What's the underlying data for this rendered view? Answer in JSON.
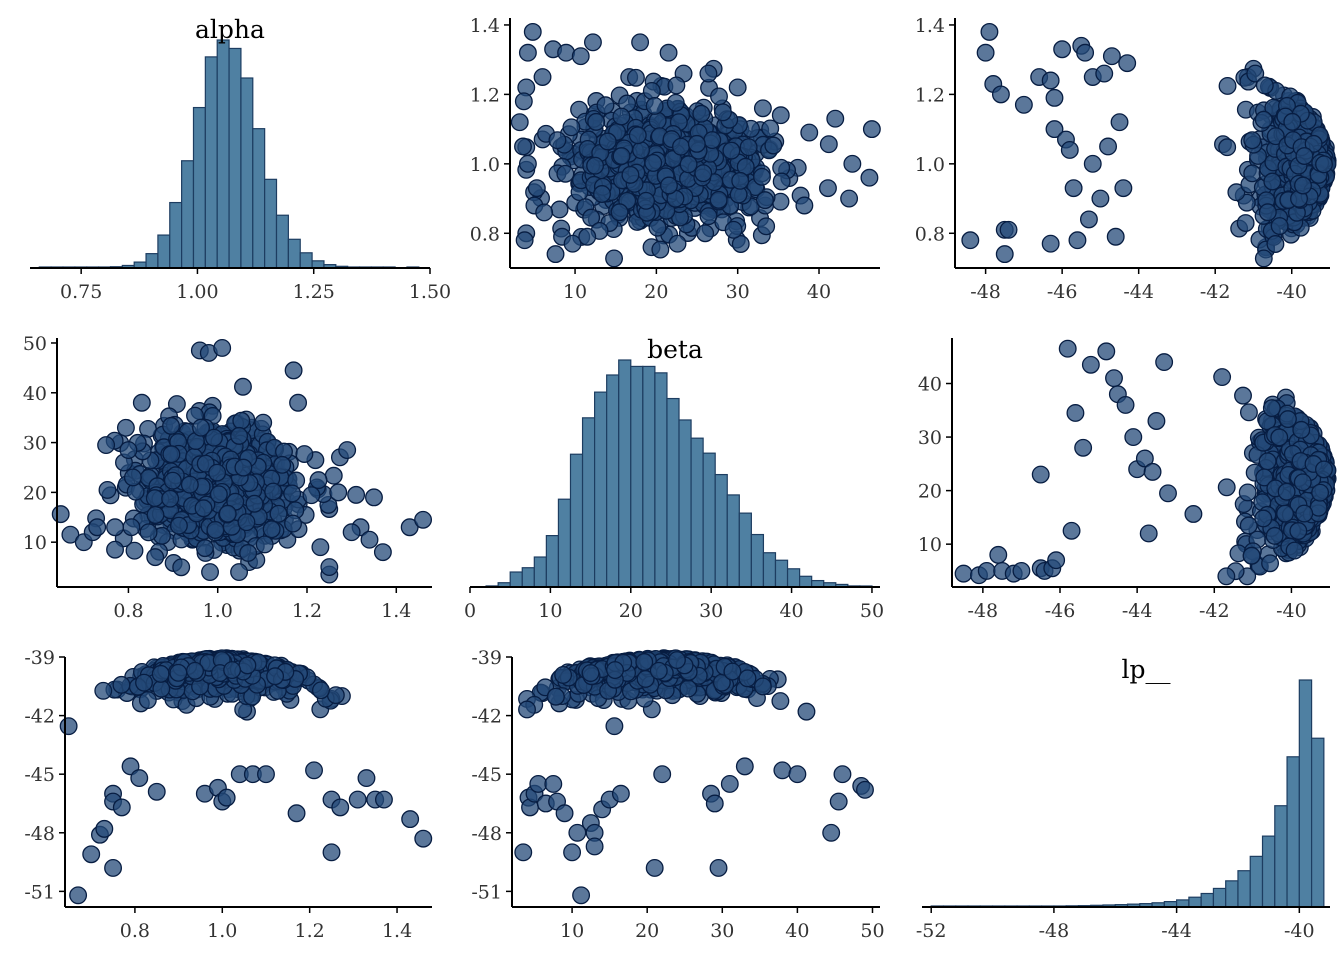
{
  "figure": {
    "background": "#ffffff",
    "colors": {
      "hist_fill": "#4f80a2",
      "hist_outline": "#1d3d61",
      "point_fill": "#244a78",
      "point_outline": "#071d42",
      "axis": "#000000",
      "tick_text": "#333333"
    }
  },
  "chart_data": [
    {
      "id": "alpha-hist",
      "type": "histogram",
      "title": "alpha",
      "xlim": [
        0.64,
        1.5
      ],
      "xticks": [
        0.75,
        1.0,
        1.25,
        1.5
      ],
      "xtick_labels": [
        "0.75",
        "1.00",
        "1.25",
        "1.50"
      ],
      "bin_start": 0.66,
      "bin_width": 0.0255,
      "counts": [
        1,
        1,
        1,
        1,
        1,
        2,
        3,
        6,
        14,
        34,
        78,
        155,
        254,
        380,
        500,
        540,
        520,
        450,
        330,
        210,
        125,
        68,
        36,
        17,
        8,
        4,
        2,
        1,
        1,
        1,
        0,
        1
      ]
    },
    {
      "id": "beta-vs-alpha",
      "type": "scatter",
      "x_param": "beta",
      "y_param": "alpha",
      "xlim": [
        2,
        47.5
      ],
      "ylim": [
        0.7,
        1.42
      ],
      "xticks": [
        10,
        20,
        30,
        40
      ],
      "yticks": [
        0.8,
        1.0,
        1.2,
        1.4
      ],
      "xtick_labels": [
        "10",
        "20",
        "30",
        "40"
      ],
      "ytick_labels": [
        "0.8",
        "1.0",
        "1.2",
        "1.4"
      ],
      "points": [
        [
          4.8,
          1.38
        ],
        [
          12.2,
          1.35
        ],
        [
          7.3,
          1.33
        ],
        [
          8.9,
          1.32
        ],
        [
          4.2,
          1.32
        ],
        [
          10.7,
          1.31
        ],
        [
          4.0,
          1.22
        ],
        [
          6.0,
          1.25
        ],
        [
          3.7,
          1.18
        ],
        [
          3.2,
          1.12
        ],
        [
          3.6,
          1.05
        ],
        [
          4.2,
          1.0
        ],
        [
          5.3,
          0.93
        ],
        [
          5.0,
          0.88
        ],
        [
          6.2,
          0.86
        ],
        [
          4.0,
          0.8
        ],
        [
          3.8,
          0.78
        ],
        [
          7.6,
          0.74
        ],
        [
          8.4,
          0.79
        ],
        [
          9.7,
          0.77
        ],
        [
          11.5,
          0.79
        ],
        [
          22.6,
          0.77
        ],
        [
          26.0,
          0.8
        ],
        [
          29.5,
          0.81
        ],
        [
          33.5,
          0.82
        ],
        [
          38.2,
          0.88
        ],
        [
          41.1,
          0.93
        ],
        [
          43.7,
          0.9
        ],
        [
          44.1,
          1.0
        ],
        [
          46.2,
          0.96
        ],
        [
          46.5,
          1.1
        ],
        [
          42.0,
          1.13
        ],
        [
          38.8,
          1.09
        ],
        [
          35.3,
          1.14
        ],
        [
          33.1,
          1.16
        ],
        [
          30.0,
          1.22
        ],
        [
          26.4,
          1.26
        ],
        [
          21.5,
          1.32
        ],
        [
          18.0,
          1.35
        ]
      ]
    },
    {
      "id": "lp-vs-alpha",
      "type": "scatter",
      "x_param": "lp__",
      "y_param": "alpha",
      "xlim": [
        -48.8,
        -39.0
      ],
      "ylim": [
        0.7,
        1.42
      ],
      "xticks": [
        -48,
        -46,
        -44,
        -42,
        -40
      ],
      "yticks": [
        0.8,
        1.0,
        1.2,
        1.4
      ],
      "xtick_labels": [
        "-48",
        "-46",
        "-44",
        "-42",
        "-40"
      ],
      "ytick_labels": [
        "0.8",
        "1.0",
        "1.2",
        "1.4"
      ],
      "points": [
        [
          -48.4,
          0.78
        ],
        [
          -48.0,
          1.32
        ],
        [
          -47.9,
          1.38
        ],
        [
          -47.8,
          1.23
        ],
        [
          -47.6,
          1.2
        ],
        [
          -47.5,
          0.81
        ],
        [
          -47.4,
          0.81
        ],
        [
          -47.5,
          0.74
        ],
        [
          -47.0,
          1.17
        ],
        [
          -46.6,
          1.25
        ],
        [
          -46.3,
          1.24
        ],
        [
          -46.2,
          1.19
        ],
        [
          -46.3,
          0.77
        ],
        [
          -46.2,
          1.1
        ],
        [
          -46.0,
          1.33
        ],
        [
          -45.9,
          1.07
        ],
        [
          -45.8,
          1.04
        ],
        [
          -45.7,
          0.93
        ],
        [
          -45.6,
          0.78
        ],
        [
          -45.5,
          1.34
        ],
        [
          -45.4,
          1.32
        ],
        [
          -45.3,
          0.84
        ],
        [
          -45.2,
          1.0
        ],
        [
          -45.2,
          1.25
        ],
        [
          -45.0,
          0.9
        ],
        [
          -44.9,
          1.26
        ],
        [
          -44.8,
          1.05
        ],
        [
          -44.7,
          1.31
        ],
        [
          -44.6,
          0.79
        ],
        [
          -44.5,
          1.12
        ],
        [
          -44.4,
          0.93
        ],
        [
          -44.3,
          1.29
        ]
      ]
    },
    {
      "id": "alpha-vs-beta",
      "type": "scatter",
      "x_param": "alpha",
      "y_param": "beta",
      "xlim": [
        0.64,
        1.48
      ],
      "ylim": [
        1,
        51
      ],
      "xticks": [
        0.8,
        1.0,
        1.2,
        1.4
      ],
      "yticks": [
        10,
        20,
        30,
        40,
        50
      ],
      "xtick_labels": [
        "0.8",
        "1.0",
        "1.2",
        "1.4"
      ],
      "ytick_labels": [
        "10",
        "20",
        "30",
        "40",
        "50"
      ],
      "points": [
        [
          0.67,
          11.5
        ],
        [
          0.7,
          10.0
        ],
        [
          0.72,
          12.0
        ],
        [
          0.73,
          13.0
        ],
        [
          0.75,
          29.5
        ],
        [
          0.77,
          13.0
        ],
        [
          0.77,
          8.5
        ],
        [
          0.79,
          26.0
        ],
        [
          0.8,
          28.5
        ],
        [
          0.81,
          23.0
        ],
        [
          0.83,
          38.0
        ],
        [
          0.86,
          7.0
        ],
        [
          0.96,
          48.5
        ],
        [
          0.98,
          48.0
        ],
        [
          1.01,
          49.0
        ],
        [
          1.17,
          44.5
        ],
        [
          1.18,
          38.0
        ],
        [
          1.23,
          9.0
        ],
        [
          1.25,
          3.5
        ],
        [
          1.25,
          5.0
        ],
        [
          1.27,
          20.0
        ],
        [
          1.29,
          28.5
        ],
        [
          1.31,
          19.5
        ],
        [
          1.32,
          13.0
        ],
        [
          1.35,
          19.0
        ],
        [
          1.37,
          8.0
        ],
        [
          1.43,
          13.0
        ],
        [
          1.46,
          14.5
        ],
        [
          1.34,
          10.5
        ],
        [
          1.3,
          12.0
        ]
      ]
    },
    {
      "id": "beta-hist",
      "type": "histogram",
      "title": "beta",
      "xlim": [
        0,
        51
      ],
      "xticks": [
        0,
        10,
        20,
        30,
        40,
        50
      ],
      "xtick_labels": [
        "0",
        "10",
        "20",
        "30",
        "40",
        "50"
      ],
      "bin_start": 2.0,
      "bin_width": 1.5,
      "counts": [
        5,
        20,
        70,
        90,
        140,
        240,
        410,
        620,
        790,
        910,
        990,
        1060,
        1030,
        1030,
        1000,
        880,
        780,
        695,
        625,
        525,
        430,
        345,
        245,
        160,
        125,
        85,
        50,
        30,
        20,
        12,
        5,
        3
      ]
    },
    {
      "id": "lp-vs-beta",
      "type": "scatter",
      "x_param": "lp__",
      "y_param": "beta",
      "xlim": [
        -48.8,
        -39.0
      ],
      "ylim": [
        2,
        48.5
      ],
      "xticks": [
        -48,
        -46,
        -44,
        -42,
        -40
      ],
      "yticks": [
        10,
        20,
        30,
        40
      ],
      "xtick_labels": [
        "-48",
        "-46",
        "-44",
        "-42",
        "-40"
      ],
      "ytick_labels": [
        "10",
        "20",
        "30",
        "40"
      ],
      "points": [
        [
          -48.5,
          4.5
        ],
        [
          -48.1,
          4.2
        ],
        [
          -47.9,
          5.0
        ],
        [
          -47.6,
          8.0
        ],
        [
          -47.5,
          5.0
        ],
        [
          -47.2,
          4.5
        ],
        [
          -47.0,
          5.0
        ],
        [
          -46.5,
          5.5
        ],
        [
          -46.4,
          5.0
        ],
        [
          -46.2,
          5.5
        ],
        [
          -46.5,
          23.0
        ],
        [
          -46.1,
          7.0
        ],
        [
          -45.8,
          46.5
        ],
        [
          -45.7,
          12.5
        ],
        [
          -45.6,
          34.5
        ],
        [
          -45.4,
          28.0
        ],
        [
          -45.2,
          43.5
        ],
        [
          -44.8,
          46.0
        ],
        [
          -44.6,
          41.0
        ],
        [
          -44.5,
          38.0
        ],
        [
          -44.3,
          36.0
        ],
        [
          -44.1,
          30.0
        ],
        [
          -44.0,
          24.0
        ],
        [
          -43.8,
          26.0
        ],
        [
          -43.6,
          23.5
        ],
        [
          -43.5,
          33.0
        ],
        [
          -43.7,
          12.0
        ],
        [
          -43.3,
          44.0
        ],
        [
          -43.2,
          19.5
        ]
      ]
    },
    {
      "id": "alpha-vs-lp",
      "type": "scatter",
      "x_param": "alpha",
      "y_param": "lp__",
      "xlim": [
        0.64,
        1.48
      ],
      "ylim": [
        -51.8,
        -39.0
      ],
      "xticks": [
        0.8,
        1.0,
        1.2,
        1.4
      ],
      "yticks": [
        -39,
        -42,
        -45,
        -48,
        -51
      ],
      "xtick_labels": [
        "0.8",
        "1.0",
        "1.2",
        "1.4"
      ],
      "ytick_labels": [
        "-39",
        "-42",
        "-45",
        "-48",
        "-51"
      ],
      "points": [
        [
          0.67,
          -51.2
        ],
        [
          0.7,
          -49.1
        ],
        [
          0.72,
          -48.1
        ],
        [
          0.73,
          -47.8
        ],
        [
          0.75,
          -46.0
        ],
        [
          0.75,
          -46.4
        ],
        [
          0.75,
          -49.8
        ],
        [
          0.77,
          -46.7
        ],
        [
          0.79,
          -44.6
        ],
        [
          0.81,
          -45.2
        ],
        [
          0.85,
          -45.9
        ],
        [
          0.96,
          -46.0
        ],
        [
          0.99,
          -45.7
        ],
        [
          1.0,
          -46.4
        ],
        [
          1.01,
          -46.2
        ],
        [
          1.04,
          -45.0
        ],
        [
          1.07,
          -45.0
        ],
        [
          1.1,
          -45.0
        ],
        [
          1.17,
          -47.0
        ],
        [
          1.21,
          -44.8
        ],
        [
          1.25,
          -46.3
        ],
        [
          1.25,
          -49.0
        ],
        [
          1.27,
          -46.7
        ],
        [
          1.31,
          -46.3
        ],
        [
          1.33,
          -45.2
        ],
        [
          1.35,
          -46.3
        ],
        [
          1.37,
          -46.3
        ],
        [
          1.43,
          -47.3
        ],
        [
          1.46,
          -48.3
        ]
      ]
    },
    {
      "id": "beta-vs-lp",
      "type": "scatter",
      "x_param": "beta",
      "y_param": "lp__",
      "xlim": [
        2,
        51
      ],
      "ylim": [
        -51.8,
        -39.0
      ],
      "xticks": [
        10,
        20,
        30,
        40,
        50
      ],
      "yticks": [
        -39,
        -42,
        -45,
        -48,
        -51
      ],
      "xtick_labels": [
        "10",
        "20",
        "30",
        "40",
        "50"
      ],
      "ytick_labels": [
        "-39",
        "-42",
        "-45",
        "-48",
        "-51"
      ],
      "points": [
        [
          3.5,
          -49.0
        ],
        [
          4.2,
          -46.2
        ],
        [
          4.4,
          -46.7
        ],
        [
          5.0,
          -46.0
        ],
        [
          5.5,
          -45.5
        ],
        [
          6.5,
          -46.5
        ],
        [
          7.5,
          -45.5
        ],
        [
          8.0,
          -46.4
        ],
        [
          9.0,
          -47.0
        ],
        [
          10.0,
          -49.0
        ],
        [
          10.7,
          -48.0
        ],
        [
          11.2,
          -51.2
        ],
        [
          12.5,
          -47.5
        ],
        [
          13.0,
          -48.0
        ],
        [
          13.0,
          -48.7
        ],
        [
          14.0,
          -46.8
        ],
        [
          15.0,
          -46.3
        ],
        [
          16.5,
          -46.0
        ],
        [
          21.0,
          -49.8
        ],
        [
          22.0,
          -45.0
        ],
        [
          28.5,
          -46.0
        ],
        [
          29.0,
          -46.5
        ],
        [
          29.5,
          -49.8
        ],
        [
          31.0,
          -45.5
        ],
        [
          33.0,
          -44.6
        ],
        [
          38.0,
          -44.8
        ],
        [
          40.0,
          -45.0
        ],
        [
          44.5,
          -48.0
        ],
        [
          45.5,
          -46.4
        ],
        [
          48.5,
          -45.6
        ],
        [
          49.0,
          -45.8
        ],
        [
          46.0,
          -45.0
        ]
      ]
    },
    {
      "id": "lp-hist",
      "type": "histogram",
      "title": "lp__",
      "xlim": [
        -52.3,
        -39.0
      ],
      "xticks": [
        -52,
        -48,
        -44,
        -40
      ],
      "xtick_labels": [
        "-52",
        "-48",
        "-44",
        "-40"
      ],
      "bin_start": -52.0,
      "bin_width": 0.4,
      "counts": [
        1,
        1,
        1,
        2,
        2,
        3,
        3,
        4,
        5,
        5,
        6,
        7,
        8,
        10,
        12,
        14,
        17,
        20,
        25,
        32,
        42,
        58,
        80,
        110,
        155,
        215,
        300,
        420,
        600,
        890,
        1345,
        1000
      ]
    }
  ]
}
